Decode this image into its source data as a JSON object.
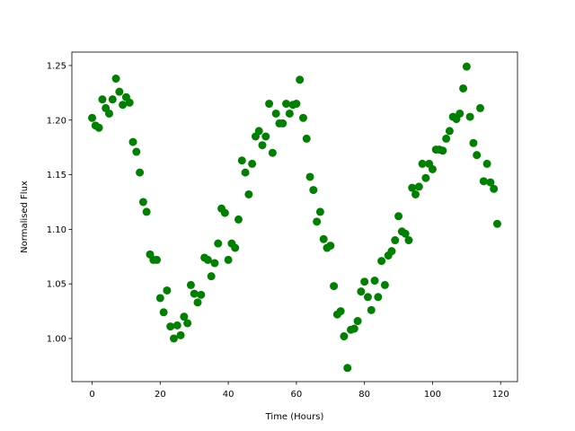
{
  "chart_data": {
    "type": "scatter",
    "xlabel": "Time (Hours)",
    "ylabel": "Normalised Flux",
    "color": "#008000",
    "x": [
      0,
      1,
      2,
      3,
      4,
      5,
      6,
      7,
      8,
      9,
      10,
      11,
      12,
      13,
      14,
      15,
      16,
      17,
      18,
      19,
      20,
      21,
      22,
      23,
      24,
      25,
      26,
      27,
      28,
      29,
      30,
      31,
      32,
      33,
      34,
      35,
      36,
      37,
      38,
      39,
      40,
      41,
      42,
      43,
      44,
      45,
      46,
      47,
      48,
      49,
      50,
      51,
      52,
      53,
      54,
      55,
      56,
      57,
      58,
      59,
      60,
      61,
      62,
      63,
      64,
      65,
      66,
      67,
      68,
      69,
      70,
      71,
      72,
      73,
      74,
      75,
      76,
      77,
      78,
      79,
      80,
      81,
      82,
      83,
      84,
      85,
      86,
      87,
      88,
      89,
      90,
      91,
      92,
      93,
      94,
      95,
      96,
      97,
      98,
      99,
      100,
      101,
      102,
      103,
      104,
      105,
      106,
      107,
      108,
      109,
      110,
      111,
      112,
      113,
      114,
      115,
      116,
      117,
      118,
      119
    ],
    "y": [
      1.202,
      1.195,
      1.193,
      1.219,
      1.211,
      1.206,
      1.219,
      1.238,
      1.226,
      1.214,
      1.221,
      1.216,
      1.18,
      1.171,
      1.152,
      1.125,
      1.116,
      1.077,
      1.072,
      1.072,
      1.037,
      1.024,
      1.044,
      1.011,
      1.0,
      1.012,
      1.003,
      1.02,
      1.014,
      1.049,
      1.041,
      1.033,
      1.04,
      1.074,
      1.072,
      1.057,
      1.069,
      1.087,
      1.119,
      1.115,
      1.072,
      1.087,
      1.083,
      1.109,
      1.163,
      1.152,
      1.132,
      1.16,
      1.185,
      1.19,
      1.177,
      1.185,
      1.215,
      1.17,
      1.206,
      1.197,
      1.197,
      1.215,
      1.206,
      1.214,
      1.215,
      1.237,
      1.202,
      1.183,
      1.148,
      1.136,
      1.107,
      1.116,
      1.091,
      1.083,
      1.085,
      1.048,
      1.022,
      1.025,
      1.002,
      0.973,
      1.008,
      1.009,
      1.016,
      1.043,
      1.052,
      1.038,
      1.026,
      1.053,
      1.038,
      1.071,
      1.049,
      1.076,
      1.08,
      1.09,
      1.112,
      1.098,
      1.096,
      1.09,
      1.138,
      1.132,
      1.139,
      1.16,
      1.147,
      1.16,
      1.155,
      1.173,
      1.173,
      1.172,
      1.183,
      1.19,
      1.203,
      1.201,
      1.206,
      1.229,
      1.249,
      1.203,
      1.179,
      1.168,
      1.211,
      1.144,
      1.16,
      1.143,
      1.137,
      1.105
    ],
    "xlim": [
      -5.95,
      124.95
    ],
    "ylim": [
      0.9605,
      1.2623
    ],
    "xticks": [
      0,
      20,
      40,
      60,
      80,
      100,
      120
    ],
    "yticks": [
      {
        "value": 1.0,
        "label": "1.00"
      },
      1.05,
      {
        "value": 1.1,
        "label": "1.10"
      },
      1.15,
      {
        "value": 1.2,
        "label": "1.20"
      },
      1.25
    ]
  }
}
